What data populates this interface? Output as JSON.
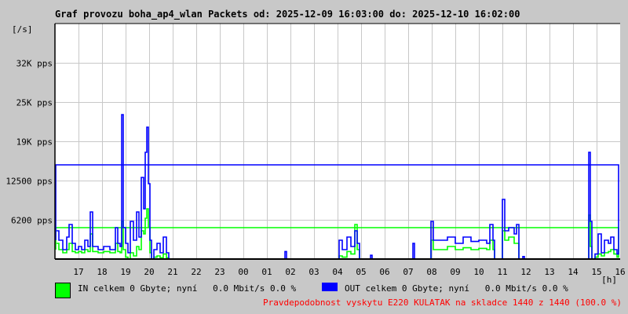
{
  "title": "Graf provozu boha_ap4_wlan Packets od: 2025-12-09 16:03:00 do: 2025-12-10 16:02:00",
  "chart_data": {
    "type": "line",
    "title": "Graf provozu boha_ap4_wlan Packets od: 2025-12-09 16:03:00 do: 2025-12-10 16:02:00",
    "ylabel": "[/s]",
    "xlabel": "[h]",
    "ylim": [
      0,
      37500
    ],
    "y_ticks": [
      {
        "value": 6200,
        "label": "6200 pps"
      },
      {
        "value": 12500,
        "label": "12500 pps"
      },
      {
        "value": 19000,
        "label": "19K pps"
      },
      {
        "value": 25000,
        "label": "25K pps"
      },
      {
        "value": 32000,
        "label": "32K pps"
      }
    ],
    "x_ticks": [
      "17",
      "18",
      "19",
      "20",
      "21",
      "22",
      "23",
      "00",
      "01",
      "02",
      "03",
      "04",
      "05",
      "06",
      "07",
      "08",
      "09",
      "10",
      "11",
      "12",
      "13",
      "14",
      "15",
      "16"
    ],
    "grid": true,
    "series": [
      {
        "name": "IN",
        "color": "#00ff00",
        "x": [
          "16:04",
          "16:10",
          "16:20",
          "16:30",
          "16:36",
          "16:44",
          "16:52",
          "17:00",
          "17:08",
          "17:16",
          "17:24",
          "17:30",
          "17:36",
          "17:50",
          "18:04",
          "18:20",
          "18:34",
          "18:40",
          "18:46",
          "18:50",
          "18:54",
          "19:00",
          "19:06",
          "19:12",
          "19:20",
          "19:28",
          "19:34",
          "19:40",
          "19:46",
          "19:50",
          "19:54",
          "19:58",
          "20:02",
          "20:06",
          "20:12",
          "20:20",
          "20:28",
          "20:36",
          "20:44",
          "20:50",
          "03:56",
          "04:04",
          "04:12",
          "04:24",
          "04:34",
          "04:44",
          "04:50",
          "04:56",
          "07:54",
          "07:58",
          "08:04",
          "08:20",
          "08:40",
          "09:00",
          "09:20",
          "09:40",
          "10:00",
          "10:20",
          "10:28",
          "10:36",
          "10:40",
          "10:56",
          "11:00",
          "11:06",
          "11:16",
          "11:30",
          "11:36",
          "11:42",
          "14:36",
          "14:40",
          "14:44",
          "14:48",
          "14:56",
          "15:04",
          "15:12",
          "15:20",
          "15:30",
          "15:36",
          "15:44",
          "15:52",
          "15:56",
          "16:02"
        ],
        "values": [
          2500,
          1500,
          1000,
          1500,
          2500,
          1200,
          1000,
          1200,
          1000,
          1500,
          1200,
          4000,
          1200,
          1000,
          1200,
          1000,
          2500,
          1200,
          1000,
          6000,
          1500,
          300,
          0,
          1000,
          500,
          2000,
          1500,
          4500,
          4000,
          6500,
          8000,
          5000,
          1000,
          0,
          300,
          500,
          200,
          800,
          200,
          0,
          0,
          500,
          300,
          1200,
          800,
          5500,
          1500,
          0,
          0,
          3000,
          1500,
          1500,
          2000,
          1500,
          1800,
          1500,
          1700,
          1500,
          3000,
          1500,
          0,
          0,
          4500,
          3000,
          3500,
          2500,
          2500,
          0,
          0,
          7000,
          2000,
          0,
          300,
          800,
          500,
          1000,
          1200,
          1500,
          800,
          300,
          5000,
          1500
        ]
      },
      {
        "name": "OUT",
        "color": "#0000ff",
        "x": [
          "16:04",
          "16:10",
          "16:20",
          "16:30",
          "16:36",
          "16:44",
          "16:52",
          "17:00",
          "17:08",
          "17:16",
          "17:24",
          "17:30",
          "17:36",
          "17:50",
          "18:04",
          "18:20",
          "18:34",
          "18:40",
          "18:46",
          "18:50",
          "18:54",
          "19:00",
          "19:06",
          "19:12",
          "19:20",
          "19:28",
          "19:34",
          "19:40",
          "19:46",
          "19:50",
          "19:54",
          "19:58",
          "20:02",
          "20:06",
          "20:12",
          "20:20",
          "20:28",
          "20:36",
          "20:44",
          "20:50",
          "01:40",
          "01:46",
          "01:50",
          "03:56",
          "04:04",
          "04:12",
          "04:24",
          "04:34",
          "04:44",
          "04:50",
          "04:56",
          "05:20",
          "05:24",
          "05:28",
          "07:08",
          "07:12",
          "07:16",
          "07:54",
          "07:58",
          "08:04",
          "08:20",
          "08:40",
          "09:00",
          "09:20",
          "09:40",
          "10:00",
          "10:20",
          "10:28",
          "10:36",
          "10:40",
          "10:56",
          "11:00",
          "11:06",
          "11:16",
          "11:30",
          "11:36",
          "11:42",
          "11:48",
          "11:52",
          "11:56",
          "14:36",
          "14:40",
          "14:44",
          "14:48",
          "14:56",
          "15:04",
          "15:12",
          "15:20",
          "15:30",
          "15:36",
          "15:44",
          "15:52",
          "15:56",
          "16:02"
        ],
        "values": [
          4500,
          3000,
          1500,
          3500,
          5500,
          2500,
          1500,
          2000,
          1500,
          3000,
          2000,
          7500,
          2000,
          1500,
          2000,
          1500,
          5000,
          2500,
          2000,
          23000,
          5000,
          2500,
          1000,
          6000,
          3000,
          7500,
          3500,
          13000,
          8000,
          17000,
          21000,
          12000,
          3000,
          0,
          1500,
          2500,
          1000,
          3500,
          1000,
          0,
          0,
          1200,
          0,
          0,
          3000,
          1500,
          3500,
          2000,
          4500,
          2500,
          0,
          0,
          600,
          0,
          0,
          2500,
          0,
          0,
          6000,
          3000,
          3000,
          3500,
          2500,
          3500,
          2800,
          3000,
          2500,
          5500,
          3000,
          0,
          0,
          9500,
          4500,
          5000,
          4000,
          5500,
          0,
          0,
          400,
          0,
          0,
          17000,
          6000,
          0,
          800,
          4000,
          1000,
          3000,
          2500,
          3500,
          1500,
          800,
          15000,
          3000
        ]
      }
    ]
  },
  "legend": {
    "in_label": "IN celkem 0 Gbyte; nyní   0.0 Mbit/s 0.0 %",
    "out_label": "OUT celkem 0 Gbyte; nyní   0.0 Mbit/s 0.0 %",
    "in_color": "#00ff00",
    "out_color": "#0000ff"
  },
  "note": "Pravdepodobnost vyskytu E220 KULATAK na skladce 1440 z 1440 (100.0 %)"
}
